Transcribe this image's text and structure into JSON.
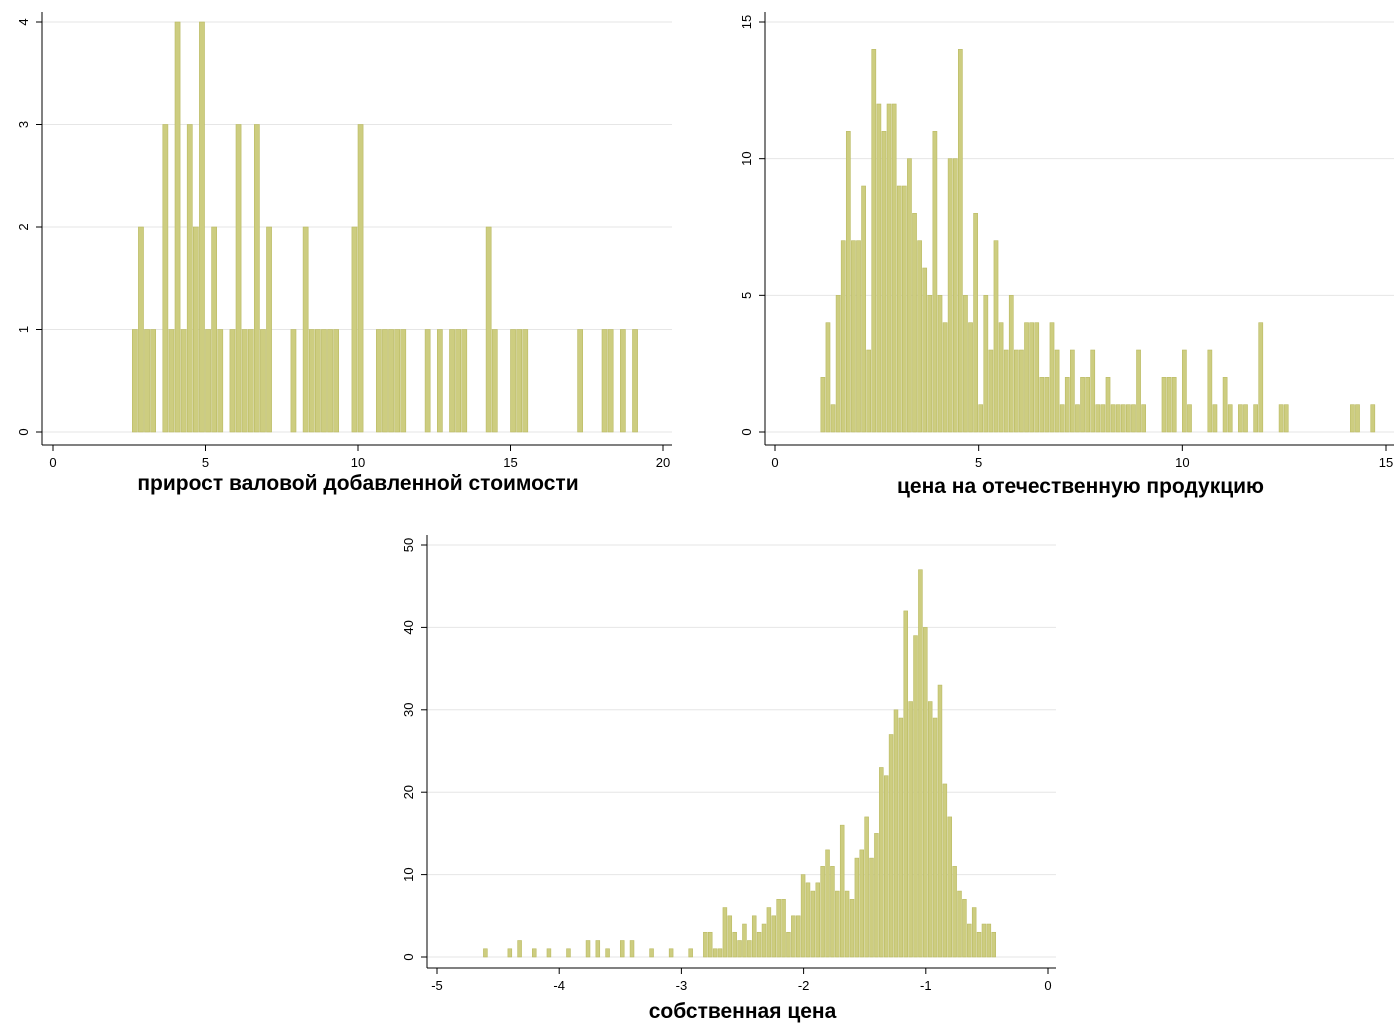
{
  "chart_data": [
    {
      "type": "histogram",
      "xlabel": "прирост валовой добавленной стоимости",
      "color": "#cdcd80",
      "bins": [
        2.6,
        2.8,
        3,
        3.2,
        3.4,
        3.6,
        3.8,
        4,
        4.2,
        4.4,
        4.6,
        4.8,
        5,
        5.2,
        5.4,
        5.6,
        5.8,
        6,
        6.2,
        6.4,
        6.6,
        6.8,
        7,
        7.2,
        7.4,
        7.6,
        7.8,
        8,
        8.2,
        8.4,
        8.6,
        8.8,
        9,
        9.2,
        9.4,
        9.6,
        9.8,
        10,
        10.2,
        10.4,
        10.6,
        10.8,
        11,
        11.2,
        11.4,
        11.6,
        11.8,
        12,
        12.2,
        12.4,
        12.6,
        12.8,
        13,
        13.2,
        13.4,
        13.6,
        13.8,
        14,
        14.2,
        14.4,
        14.6,
        14.8,
        15,
        15.2,
        15.4,
        15.6,
        15.8,
        16,
        16.2,
        16.4,
        16.6,
        16.8,
        17,
        17.2,
        17.4,
        17.6,
        17.8,
        18,
        18.2,
        18.4,
        18.6,
        18.8,
        19,
        19.2
      ],
      "values": [
        1,
        2,
        1,
        1,
        0,
        3,
        1,
        4,
        1,
        3,
        2,
        4,
        1,
        2,
        1,
        0,
        1,
        3,
        1,
        1,
        3,
        1,
        2,
        0,
        0,
        0,
        1,
        0,
        2,
        1,
        1,
        1,
        1,
        1,
        0,
        0,
        2,
        3,
        0,
        0,
        1,
        1,
        1,
        1,
        1,
        0,
        0,
        0,
        1,
        0,
        1,
        0,
        1,
        1,
        1,
        0,
        0,
        0,
        2,
        1,
        0,
        0,
        1,
        1,
        1,
        0,
        0,
        0,
        0,
        0,
        0,
        0,
        0,
        1,
        0,
        0,
        0,
        1,
        1,
        0,
        1,
        0,
        1
      ],
      "xlim": [
        0,
        20
      ],
      "xticks": [
        0,
        5,
        10,
        15,
        20
      ],
      "ylim": [
        0,
        4
      ],
      "yticks": [
        0,
        1,
        2,
        3,
        4
      ],
      "grid": true
    },
    {
      "type": "histogram",
      "xlabel": "цена на отечественную продукцию",
      "color": "#cdcd80",
      "bins": [
        1.125,
        1.25,
        1.375,
        1.5,
        1.625,
        1.75,
        1.875,
        2,
        2.125,
        2.25,
        2.375,
        2.5,
        2.625,
        2.75,
        2.875,
        3,
        3.125,
        3.25,
        3.375,
        3.5,
        3.625,
        3.75,
        3.875,
        4,
        4.125,
        4.25,
        4.375,
        4.5,
        4.625,
        4.75,
        4.875,
        5,
        5.125,
        5.25,
        5.375,
        5.5,
        5.625,
        5.75,
        5.875,
        6,
        6.125,
        6.25,
        6.375,
        6.5,
        6.625,
        6.75,
        6.875,
        7,
        7.125,
        7.25,
        7.375,
        7.5,
        7.625,
        7.75,
        7.875,
        8,
        8.125,
        8.25,
        8.375,
        8.5,
        8.625,
        8.75,
        8.875,
        9,
        9.125,
        9.25,
        9.375,
        9.5,
        9.625,
        9.75,
        9.875,
        10,
        10.125,
        10.25,
        10.375,
        10.5,
        10.625,
        10.75,
        10.875,
        11,
        11.125,
        11.25,
        11.375,
        11.5,
        11.625,
        11.75,
        11.875,
        12,
        12.125,
        12.25,
        12.375,
        12.5,
        12.625,
        12.75,
        12.875,
        13,
        13.125,
        13.25,
        13.375,
        13.5,
        13.625,
        13.75,
        13.875,
        14,
        14.125,
        14.25,
        14.375,
        14.5,
        14.625,
        14.75
      ],
      "values": [
        2,
        4,
        1,
        5,
        7,
        11,
        7,
        7,
        9,
        3,
        14,
        12,
        11,
        12,
        12,
        9,
        9,
        10,
        8,
        7,
        6,
        5,
        11,
        5,
        4,
        10,
        10,
        14,
        5,
        4,
        8,
        1,
        5,
        3,
        7,
        4,
        3,
        5,
        3,
        3,
        4,
        4,
        4,
        2,
        2,
        4,
        3,
        1,
        2,
        3,
        1,
        2,
        2,
        3,
        1,
        1,
        2,
        1,
        1,
        1,
        1,
        1,
        3,
        1,
        0,
        0,
        0,
        2,
        2,
        2,
        0,
        3,
        1,
        0,
        0,
        0,
        3,
        1,
        0,
        2,
        1,
        0,
        1,
        1,
        0,
        1,
        4,
        0,
        0,
        0,
        1,
        1,
        0,
        0,
        0,
        0,
        0,
        0,
        0,
        0,
        0,
        0,
        0,
        0,
        1,
        1,
        0,
        0,
        1
      ],
      "xlim": [
        0,
        15
      ],
      "xticks": [
        0,
        5,
        10,
        15
      ],
      "ylim": [
        0,
        15
      ],
      "yticks": [
        0,
        5,
        10,
        15
      ],
      "grid": true
    },
    {
      "type": "histogram",
      "xlabel": "собственная цена",
      "color": "#cdcd80",
      "bins": [
        -4.62,
        -4.58,
        -4.54,
        -4.5,
        -4.46,
        -4.42,
        -4.38,
        -4.34,
        -4.3,
        -4.26,
        -4.22,
        -4.18,
        -4.14,
        -4.1,
        -4.06,
        -4.02,
        -3.98,
        -3.94,
        -3.9,
        -3.86,
        -3.82,
        -3.78,
        -3.74,
        -3.7,
        -3.66,
        -3.62,
        -3.58,
        -3.54,
        -3.5,
        -3.46,
        -3.42,
        -3.38,
        -3.34,
        -3.3,
        -3.26,
        -3.22,
        -3.18,
        -3.14,
        -3.1,
        -3.06,
        -3.02,
        -2.98,
        -2.94,
        -2.9,
        -2.86,
        -2.82,
        -2.78,
        -2.74,
        -2.7,
        -2.66,
        -2.62,
        -2.58,
        -2.54,
        -2.5,
        -2.46,
        -2.42,
        -2.38,
        -2.34,
        -2.3,
        -2.26,
        -2.22,
        -2.18,
        -2.14,
        -2.1,
        -2.06,
        -2.02,
        -1.98,
        -1.94,
        -1.9,
        -1.86,
        -1.82,
        -1.78,
        -1.74,
        -1.7,
        -1.66,
        -1.62,
        -1.58,
        -1.54,
        -1.5,
        -1.46,
        -1.42,
        -1.38,
        -1.34,
        -1.3,
        -1.26,
        -1.22,
        -1.18,
        -1.14,
        -1.1,
        -1.06,
        -1.02,
        -0.98,
        -0.94,
        -0.9,
        -0.86,
        -0.82,
        -0.78,
        -0.74,
        -0.7,
        -0.66,
        -0.62,
        -0.58,
        -0.54,
        -0.5,
        -0.46,
        -0.42
      ],
      "values": [
        1,
        0,
        0,
        0,
        0,
        1,
        0,
        2,
        0,
        0,
        1,
        0,
        0,
        1,
        0,
        0,
        0,
        1,
        0,
        0,
        0,
        2,
        0,
        2,
        0,
        1,
        0,
        0,
        2,
        0,
        2,
        0,
        0,
        0,
        1,
        0,
        0,
        0,
        1,
        0,
        0,
        0,
        1,
        0,
        0,
        3,
        3,
        1,
        1,
        6,
        5,
        3,
        2,
        4,
        2,
        5,
        3,
        4,
        6,
        5,
        7,
        7,
        3,
        5,
        5,
        10,
        9,
        8,
        9,
        11,
        13,
        11,
        8,
        16,
        8,
        7,
        12,
        13,
        17,
        12,
        15,
        23,
        22,
        27,
        30,
        29,
        42,
        31,
        39,
        47,
        40,
        31,
        29,
        33,
        21,
        17,
        11,
        8,
        7,
        4,
        6,
        3,
        4,
        4,
        3
      ],
      "xlim": [
        -5,
        0
      ],
      "xticks": [
        -5,
        -4,
        -3,
        -2,
        -1,
        0
      ],
      "ylim": [
        0,
        50
      ],
      "yticks": [
        0,
        10,
        20,
        30,
        40,
        50
      ],
      "grid": true
    }
  ]
}
